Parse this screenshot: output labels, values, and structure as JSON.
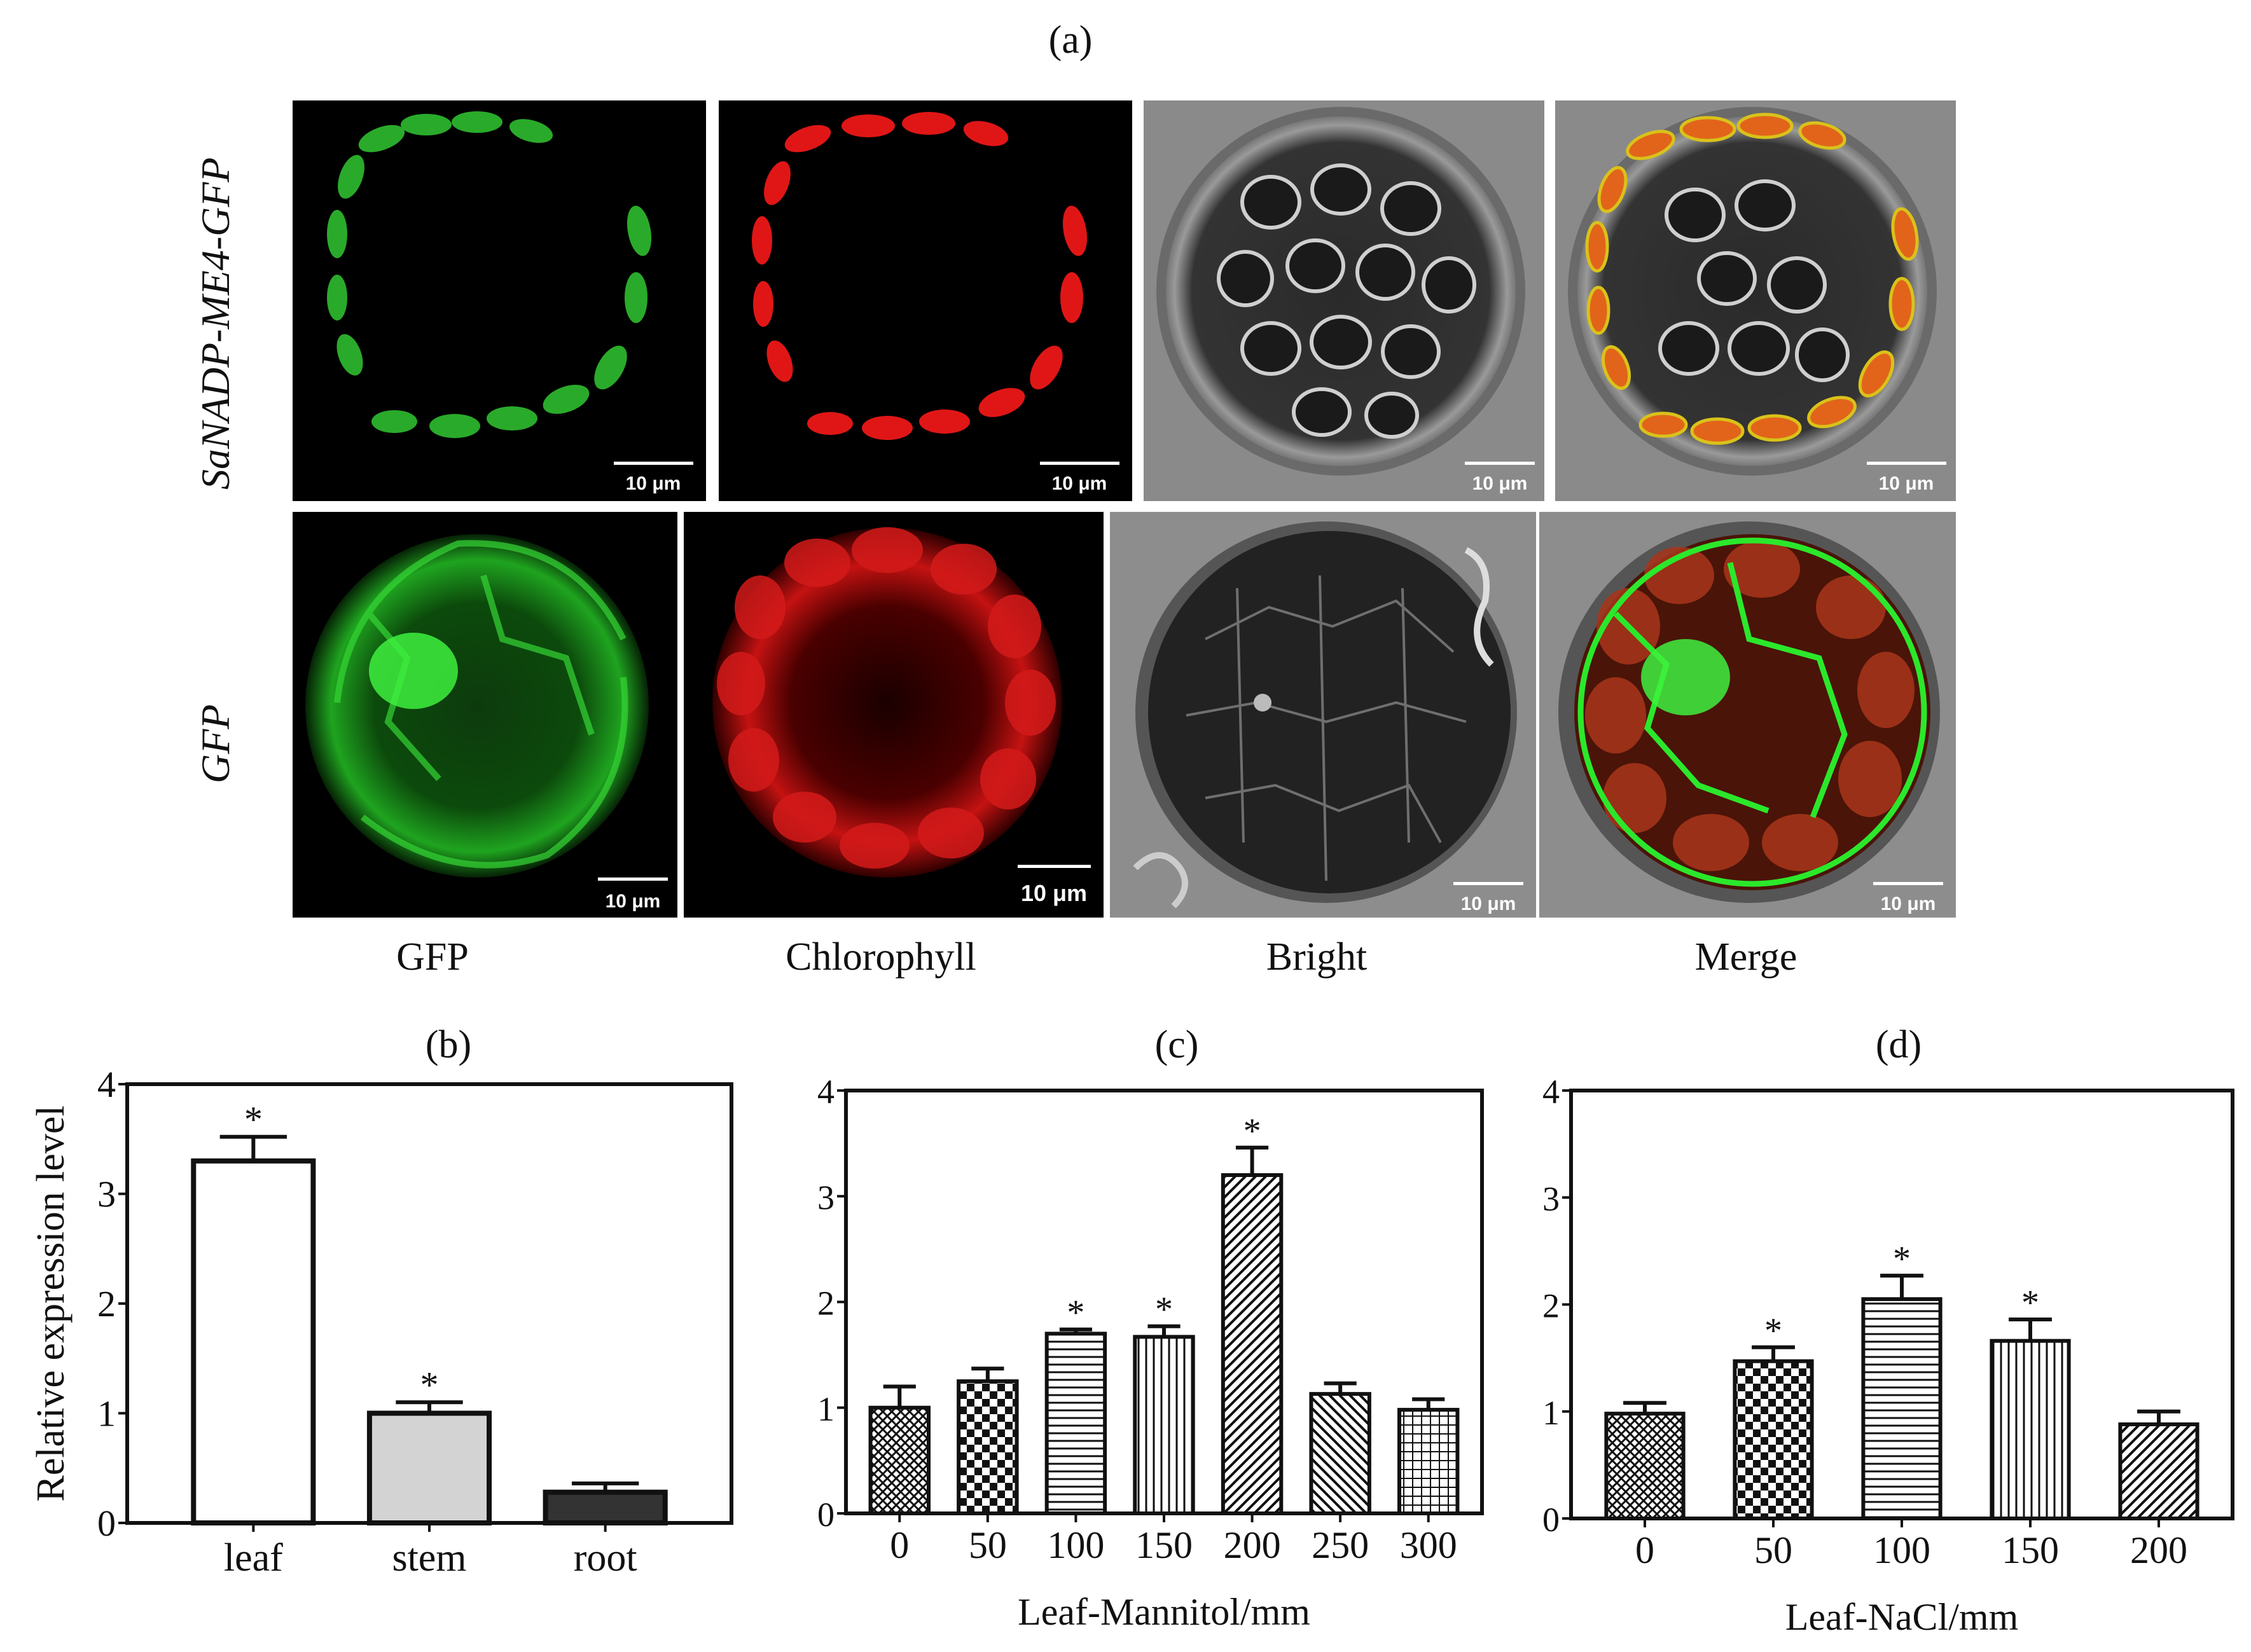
{
  "panel_a": {
    "label": "(a)",
    "row_labels": [
      "SaNADP-ME4-GFP",
      "GFP"
    ],
    "column_labels": [
      "GFP",
      "Chlorophyll",
      "Bright",
      "Merge"
    ],
    "scale_bar_label": "10 μm"
  },
  "chart_data": [
    {
      "type": "bar",
      "panel_label": "(b)",
      "title": "",
      "xlabel": "",
      "ylabel": "Relative expression level",
      "ylim": [
        0,
        4
      ],
      "yticks": [
        "0",
        "1",
        "2",
        "3",
        "4"
      ],
      "categories": [
        "leaf",
        "stem",
        "root"
      ],
      "values": [
        3.3,
        1.0,
        0.28
      ],
      "errors": [
        0.22,
        0.1,
        0.08
      ],
      "significant": [
        true,
        true,
        false
      ],
      "annotation": "*",
      "fills": [
        "#ffffff",
        "#d3d3d3",
        "#333333"
      ]
    },
    {
      "type": "bar",
      "panel_label": "(c)",
      "title": "",
      "xlabel": "Leaf-Mannitol/mm",
      "ylabel": "",
      "ylim": [
        0,
        4
      ],
      "yticks": [
        "0",
        "1",
        "2",
        "3",
        "4"
      ],
      "categories": [
        "0",
        "50",
        "100",
        "150",
        "200",
        "250",
        "300"
      ],
      "values": [
        1.0,
        1.25,
        1.7,
        1.67,
        3.2,
        1.13,
        0.98
      ],
      "errors": [
        0.2,
        0.12,
        0.04,
        0.1,
        0.26,
        0.1,
        0.1
      ],
      "significant": [
        false,
        false,
        true,
        true,
        true,
        false,
        false
      ],
      "annotation": "*",
      "patterns": [
        "cross",
        "checker",
        "hlines",
        "vlines",
        "diag",
        "diag2",
        "grid"
      ]
    },
    {
      "type": "bar",
      "panel_label": "(d)",
      "title": "",
      "xlabel": "Leaf-NaCl/mm",
      "ylabel": "",
      "ylim": [
        0,
        4
      ],
      "yticks": [
        "0",
        "1",
        "2",
        "3",
        "4"
      ],
      "categories": [
        "0",
        "50",
        "100",
        "150",
        "200"
      ],
      "values": [
        0.98,
        1.47,
        2.05,
        1.66,
        0.88
      ],
      "errors": [
        0.1,
        0.13,
        0.22,
        0.2,
        0.12
      ],
      "significant": [
        false,
        true,
        true,
        true,
        false
      ],
      "annotation": "*",
      "patterns": [
        "cross",
        "checker",
        "hlines",
        "vlines",
        "diag"
      ]
    }
  ]
}
